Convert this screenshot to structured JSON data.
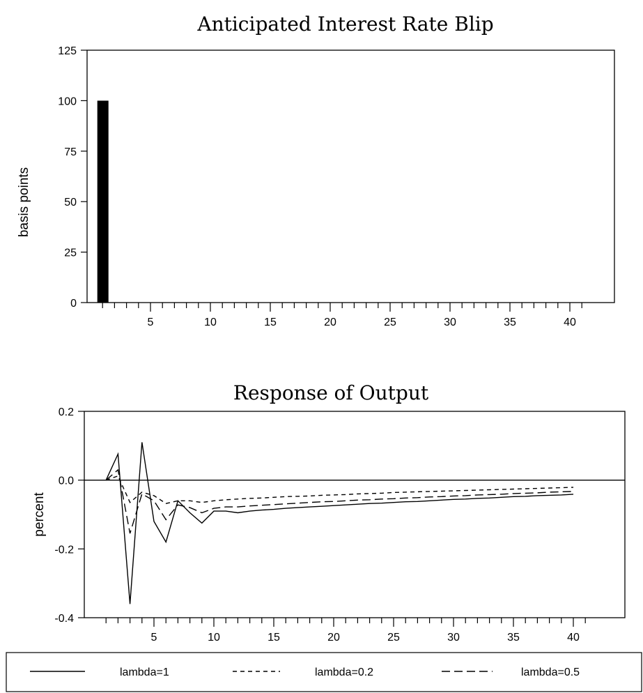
{
  "chart_data": [
    {
      "type": "bar",
      "title": "Anticipated Interest Rate Blip",
      "ylabel": "basis points",
      "xlabel": "",
      "ylim": [
        0,
        125
      ],
      "yticks": [
        "0",
        "25",
        "50",
        "75",
        "100",
        "125"
      ],
      "xticks": [
        "5",
        "10",
        "15",
        "20",
        "25",
        "30",
        "35",
        "40"
      ],
      "xlim": [
        0,
        41
      ],
      "grid": false,
      "series": [
        {
          "x": [
            1
          ],
          "values": [
            100
          ]
        }
      ]
    },
    {
      "type": "line",
      "title": "Response of Output",
      "ylabel": "percent",
      "xlabel": "",
      "ylim": [
        -0.4,
        0.2
      ],
      "yticks": [
        "-0.4",
        "-0.2",
        "0.0",
        "0.2"
      ],
      "xticks": [
        "5",
        "10",
        "15",
        "20",
        "25",
        "30",
        "35",
        "40"
      ],
      "xlim": [
        0,
        41
      ],
      "grid": false,
      "zero_line": true,
      "legend": "bottom",
      "series": [
        {
          "name": "lambda=1",
          "style": "solid",
          "x": [
            1,
            2,
            3,
            4,
            5,
            6,
            7,
            8,
            9,
            10,
            11,
            12,
            13,
            14,
            15,
            16,
            17,
            18,
            19,
            20,
            21,
            22,
            23,
            24,
            25,
            26,
            27,
            28,
            29,
            30,
            31,
            32,
            33,
            34,
            35,
            36,
            37,
            38,
            39,
            40
          ],
          "values": [
            0.0,
            0.076,
            -0.36,
            0.11,
            -0.12,
            -0.18,
            -0.06,
            -0.095,
            -0.125,
            -0.09,
            -0.09,
            -0.095,
            -0.09,
            -0.087,
            -0.085,
            -0.082,
            -0.08,
            -0.078,
            -0.076,
            -0.074,
            -0.072,
            -0.07,
            -0.068,
            -0.067,
            -0.065,
            -0.063,
            -0.062,
            -0.06,
            -0.058,
            -0.056,
            -0.055,
            -0.053,
            -0.052,
            -0.05,
            -0.048,
            -0.047,
            -0.045,
            -0.044,
            -0.043,
            -0.041
          ]
        },
        {
          "name": "lambda=0.2",
          "style": "dashed",
          "x": [
            1,
            2,
            3,
            4,
            5,
            6,
            7,
            8,
            9,
            10,
            11,
            12,
            13,
            14,
            15,
            16,
            17,
            18,
            19,
            20,
            21,
            22,
            23,
            24,
            25,
            26,
            27,
            28,
            29,
            30,
            31,
            32,
            33,
            34,
            35,
            36,
            37,
            38,
            39,
            40
          ],
          "values": [
            0.0,
            0.012,
            -0.065,
            -0.035,
            -0.045,
            -0.068,
            -0.06,
            -0.06,
            -0.065,
            -0.06,
            -0.057,
            -0.055,
            -0.053,
            -0.052,
            -0.05,
            -0.048,
            -0.047,
            -0.046,
            -0.044,
            -0.043,
            -0.042,
            -0.04,
            -0.039,
            -0.038,
            -0.036,
            -0.035,
            -0.034,
            -0.033,
            -0.032,
            -0.031,
            -0.03,
            -0.029,
            -0.028,
            -0.027,
            -0.026,
            -0.025,
            -0.024,
            -0.023,
            -0.022,
            -0.021
          ]
        },
        {
          "name": "lambda=0.5",
          "style": "longdash",
          "x": [
            1,
            2,
            3,
            4,
            5,
            6,
            7,
            8,
            9,
            10,
            11,
            12,
            13,
            14,
            15,
            16,
            17,
            18,
            19,
            20,
            21,
            22,
            23,
            24,
            25,
            26,
            27,
            28,
            29,
            30,
            31,
            32,
            33,
            34,
            35,
            36,
            37,
            38,
            39,
            40
          ],
          "values": [
            0.0,
            0.03,
            -0.155,
            -0.04,
            -0.06,
            -0.115,
            -0.072,
            -0.08,
            -0.095,
            -0.082,
            -0.078,
            -0.078,
            -0.075,
            -0.073,
            -0.071,
            -0.069,
            -0.067,
            -0.065,
            -0.063,
            -0.062,
            -0.06,
            -0.058,
            -0.057,
            -0.055,
            -0.054,
            -0.052,
            -0.051,
            -0.049,
            -0.048,
            -0.046,
            -0.045,
            -0.043,
            -0.042,
            -0.041,
            -0.039,
            -0.038,
            -0.037,
            -0.035,
            -0.034,
            -0.033
          ]
        }
      ]
    }
  ]
}
